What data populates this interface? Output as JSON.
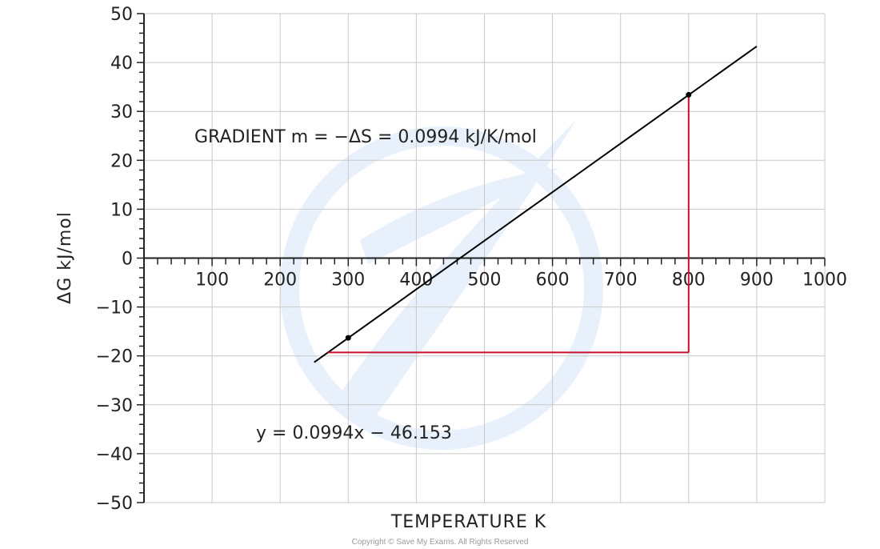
{
  "chart_data": {
    "type": "line",
    "xlabel": "TEMPERATURE  K",
    "ylabel": "ΔG kJ/mol",
    "xlim": [
      0,
      1000
    ],
    "ylim": [
      -50,
      50
    ],
    "x_ticks": [
      100,
      200,
      300,
      400,
      500,
      600,
      700,
      800,
      900,
      1000
    ],
    "x_tick_labels": [
      "100",
      "200",
      "300",
      "400",
      "500",
      "600",
      "700",
      "800",
      "900",
      "1000"
    ],
    "y_ticks": [
      50,
      40,
      30,
      20,
      10,
      0,
      -10,
      -20,
      -30,
      -40,
      -50
    ],
    "y_tick_labels": [
      "50",
      "40",
      "30",
      "20",
      "10",
      "0",
      "−10",
      "−20",
      "−30",
      "−40",
      "−50"
    ],
    "grid": true,
    "series": [
      {
        "type": "line",
        "color": "#000000",
        "x": [
          250,
          900
        ],
        "y": [
          -21.3,
          43.3
        ]
      }
    ],
    "points": [
      {
        "x": 300,
        "y": -16.3
      },
      {
        "x": 800,
        "y": 33.4
      }
    ],
    "gradient_triangle": {
      "color": "#c8102e",
      "corner": {
        "x": 800,
        "y": -19.3
      },
      "start_x": 270,
      "top_y": 33.4
    },
    "annotations": [
      "GRADIENT  m = −ΔS = 0.0994 kJ/K/mol",
      "y = 0.0994x − 46.153"
    ],
    "watermark_color": "#e8f1fb"
  },
  "footer": {
    "copyright": "Copyright © Save My Exams. All Rights Reserved"
  }
}
